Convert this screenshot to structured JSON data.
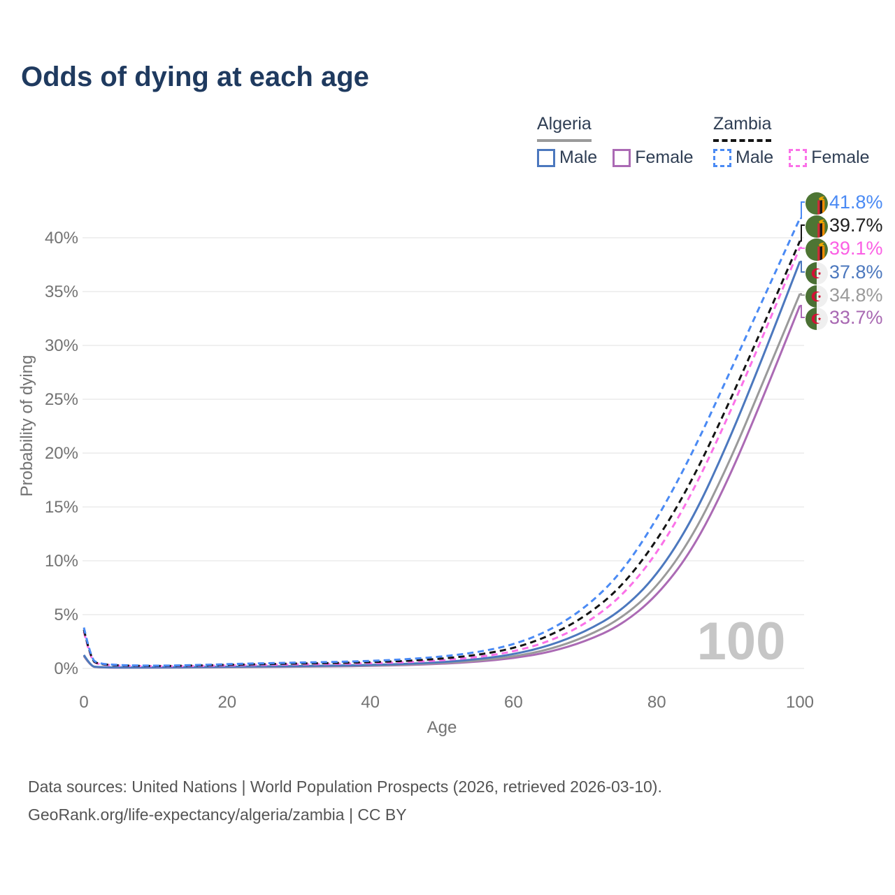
{
  "page": {
    "title": "Odds of dying at each age",
    "title_color": "#1F3A5F"
  },
  "legend": {
    "groups": [
      {
        "country": "Algeria",
        "line_style": "solid",
        "underline_color": "#9A9A9A",
        "items": [
          {
            "label": "Male",
            "color": "#4C78BE"
          },
          {
            "label": "Female",
            "color": "#AB6AB4"
          }
        ]
      },
      {
        "country": "Zambia",
        "line_style": "dashed",
        "underline_color": "#141414",
        "items": [
          {
            "label": "Male",
            "color": "#4A8AF4"
          },
          {
            "label": "Female",
            "color": "#FB71E8"
          }
        ]
      }
    ]
  },
  "chart_data": {
    "type": "line",
    "title": "Odds of dying at each age",
    "xlabel": "Age",
    "ylabel": "Probability of dying",
    "xlim": [
      0,
      100
    ],
    "ylim": [
      0,
      43.5
    ],
    "grid": "horizontal",
    "x_ticks": [
      0,
      20,
      40,
      60,
      80,
      100
    ],
    "y_ticks": [
      {
        "value": 0,
        "label": "0%"
      },
      {
        "value": 5,
        "label": "5%"
      },
      {
        "value": 10,
        "label": "10%"
      },
      {
        "value": 15,
        "label": "15%"
      },
      {
        "value": 20,
        "label": "20%"
      },
      {
        "value": 25,
        "label": "25%"
      },
      {
        "value": 30,
        "label": "30%"
      },
      {
        "value": 35,
        "label": "35%"
      },
      {
        "value": 40,
        "label": "40%"
      }
    ],
    "watermark_age": "100",
    "ages": [
      0,
      1,
      2,
      5,
      10,
      15,
      20,
      25,
      30,
      35,
      40,
      45,
      50,
      55,
      60,
      65,
      70,
      75,
      80,
      85,
      90,
      95,
      100
    ],
    "series": [
      {
        "name": "Zambia Male",
        "country": "Zambia",
        "sex": "Male",
        "style": "dashed",
        "color": "#4A8AF4",
        "label_color": "#4A8AF4",
        "flag": "zambia",
        "end_label": "41.8%",
        "values": [
          3.8,
          0.9,
          0.45,
          0.3,
          0.25,
          0.3,
          0.4,
          0.48,
          0.55,
          0.6,
          0.7,
          0.85,
          1.1,
          1.5,
          2.2,
          3.5,
          5.6,
          8.8,
          13.8,
          20.0,
          27.2,
          34.5,
          41.8
        ]
      },
      {
        "name": "Zambia Both sexes",
        "country": "Zambia",
        "sex": "Both sexes",
        "style": "dashed",
        "color": "#141414",
        "label_color": "#1F1F1F",
        "flag": "zambia",
        "end_label": "39.7%",
        "values": [
          3.6,
          0.8,
          0.4,
          0.27,
          0.22,
          0.26,
          0.34,
          0.4,
          0.46,
          0.5,
          0.58,
          0.7,
          0.9,
          1.25,
          1.85,
          3.0,
          4.8,
          7.5,
          11.8,
          17.5,
          24.5,
          32.0,
          39.7
        ]
      },
      {
        "name": "Zambia Female",
        "country": "Zambia",
        "sex": "Female",
        "style": "dashed",
        "color": "#FB71E8",
        "label_color": "#FB5FE4",
        "flag": "zambia",
        "end_label": "39.1%",
        "values": [
          3.4,
          0.75,
          0.38,
          0.25,
          0.2,
          0.22,
          0.28,
          0.33,
          0.38,
          0.42,
          0.48,
          0.58,
          0.75,
          1.05,
          1.55,
          2.5,
          4.1,
          6.6,
          10.6,
          16.3,
          23.4,
          31.1,
          39.1
        ]
      },
      {
        "name": "Algeria Male",
        "country": "Algeria",
        "sex": "Male",
        "style": "solid",
        "color": "#4C78BE",
        "label_color": "#4C78BE",
        "flag": "algeria",
        "end_label": "37.8%",
        "values": [
          1.25,
          0.2,
          0.12,
          0.09,
          0.09,
          0.12,
          0.16,
          0.19,
          0.22,
          0.26,
          0.32,
          0.42,
          0.58,
          0.85,
          1.3,
          2.1,
          3.4,
          5.3,
          8.6,
          13.8,
          21.0,
          29.2,
          37.8
        ]
      },
      {
        "name": "Algeria Both sexes",
        "country": "Algeria",
        "sex": "Both sexes",
        "style": "solid",
        "color": "#9A9A9A",
        "label_color": "#9A9A9A",
        "flag": "algeria",
        "end_label": "34.8%",
        "values": [
          1.2,
          0.18,
          0.11,
          0.08,
          0.08,
          0.1,
          0.13,
          0.16,
          0.19,
          0.22,
          0.28,
          0.36,
          0.5,
          0.72,
          1.1,
          1.75,
          2.9,
          4.6,
          7.5,
          12.2,
          18.9,
          26.8,
          34.8
        ]
      },
      {
        "name": "Algeria Female",
        "country": "Algeria",
        "sex": "Female",
        "style": "solid",
        "color": "#AB6AB4",
        "label_color": "#A868B2",
        "flag": "algeria",
        "end_label": "33.7%",
        "values": [
          1.15,
          0.17,
          0.1,
          0.07,
          0.07,
          0.09,
          0.11,
          0.13,
          0.16,
          0.19,
          0.24,
          0.31,
          0.43,
          0.62,
          0.95,
          1.5,
          2.5,
          4.0,
          6.7,
          11.0,
          17.5,
          25.4,
          33.7
        ]
      }
    ]
  },
  "footer": {
    "line1": "Data sources: United Nations | World Population Prospects (2026, retrieved 2026-03-10).",
    "line2": "GeoRank.org/life-expectancy/algeria/zambia | CC BY"
  },
  "colors": {
    "axis_text": "#737373",
    "grid": "#ECECEC",
    "watermark": "#C6C6C6",
    "footer_text": "#545454"
  }
}
